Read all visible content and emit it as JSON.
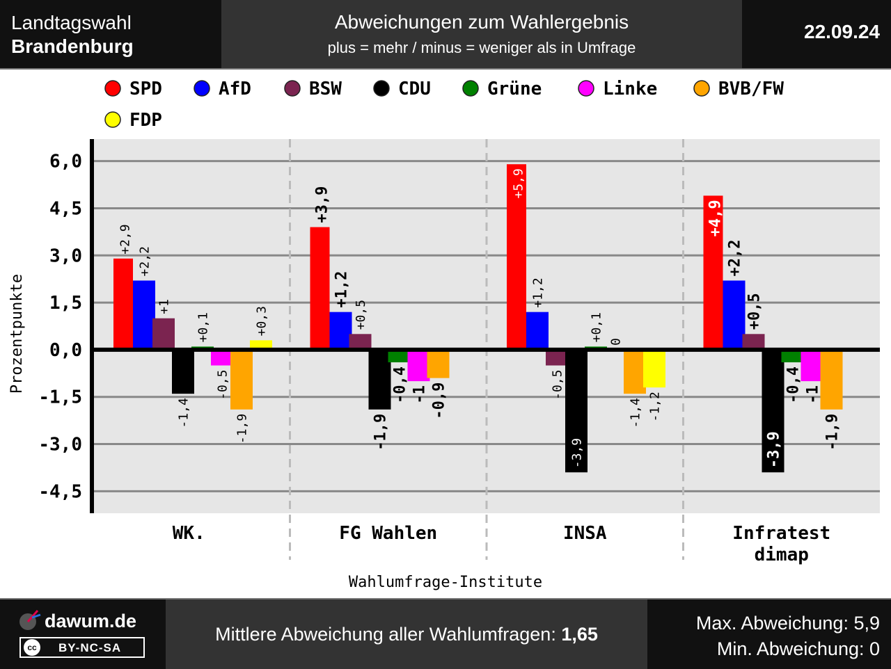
{
  "header": {
    "title_line1": "Landtagswahl",
    "title_line2": "Brandenburg",
    "chart_title": "Abweichungen zum Wahlergebnis",
    "chart_subtitle": "plus = mehr / minus = weniger als in Umfrage",
    "date": "22.09.24"
  },
  "footer": {
    "site": "dawum.de",
    "license": "BY-NC-SA",
    "license_badge": "cc",
    "mean_label": "Mittlere Abweichung aller Wahlumfragen:",
    "mean_value": "1,65",
    "max_line": "Max. Abweichung: 5,9",
    "min_line": "Min. Abweichung: 0"
  },
  "chart_data": {
    "type": "bar",
    "title": "Abweichungen zum Wahlergebnis",
    "xlabel": "Wahlumfrage-Institute",
    "ylabel": "Prozentpunkte",
    "ylim": [
      -5.2,
      6.7
    ],
    "yticks": [
      6.0,
      4.5,
      3.0,
      1.5,
      0.0,
      -1.5,
      -3.0,
      -4.5
    ],
    "ytick_labels": [
      "6,0",
      "4,5",
      "3,0",
      "1,5",
      "0,0",
      "-1,5",
      "-3,0",
      "-4,5"
    ],
    "legend_position": "top",
    "categories": [
      "WK.",
      "FG Wahlen",
      "INSA",
      "Infratest dimap"
    ],
    "series": [
      {
        "name": "SPD",
        "color": "#ff0000",
        "values": [
          2.9,
          3.9,
          5.9,
          4.9
        ],
        "labels": [
          "+2,9",
          "+3,9",
          "+5,9",
          "+4,9"
        ]
      },
      {
        "name": "AfD",
        "color": "#0000ff",
        "values": [
          2.2,
          1.2,
          1.2,
          2.2
        ],
        "labels": [
          "+2,2",
          "+1,2",
          "+1,2",
          "+2,2"
        ]
      },
      {
        "name": "BSW",
        "color": "#7b2450",
        "values": [
          1.0,
          0.5,
          -0.5,
          0.5
        ],
        "labels": [
          "+1",
          "+0,5",
          "-0,5",
          "+0,5"
        ]
      },
      {
        "name": "CDU",
        "color": "#000000",
        "values": [
          -1.4,
          -1.9,
          -3.9,
          -3.9
        ],
        "labels": [
          "-1,4",
          "-1,9",
          "-3,9",
          "-3,9"
        ]
      },
      {
        "name": "Grüne",
        "color": "#008000",
        "values": [
          0.1,
          -0.4,
          0.1,
          -0.4
        ],
        "labels": [
          "+0,1",
          "-0,4",
          "+0,1",
          "-0,4"
        ]
      },
      {
        "name": "Linke",
        "color": "#ff00ff",
        "values": [
          -0.5,
          -1.0,
          0.0,
          -1.0
        ],
        "labels": [
          "-0,5",
          "-1",
          "0",
          "-1"
        ]
      },
      {
        "name": "BVB/FW",
        "color": "#ffa500",
        "values": [
          -1.9,
          -0.9,
          -1.4,
          -1.9
        ],
        "labels": [
          "-1,9",
          "-0,9",
          "-1,4",
          "-1,9"
        ]
      },
      {
        "name": "FDP",
        "color": "#ffff00",
        "values": [
          0.3,
          null,
          -1.2,
          null
        ],
        "labels": [
          "+0,3",
          "",
          "-1,2",
          ""
        ]
      }
    ]
  }
}
